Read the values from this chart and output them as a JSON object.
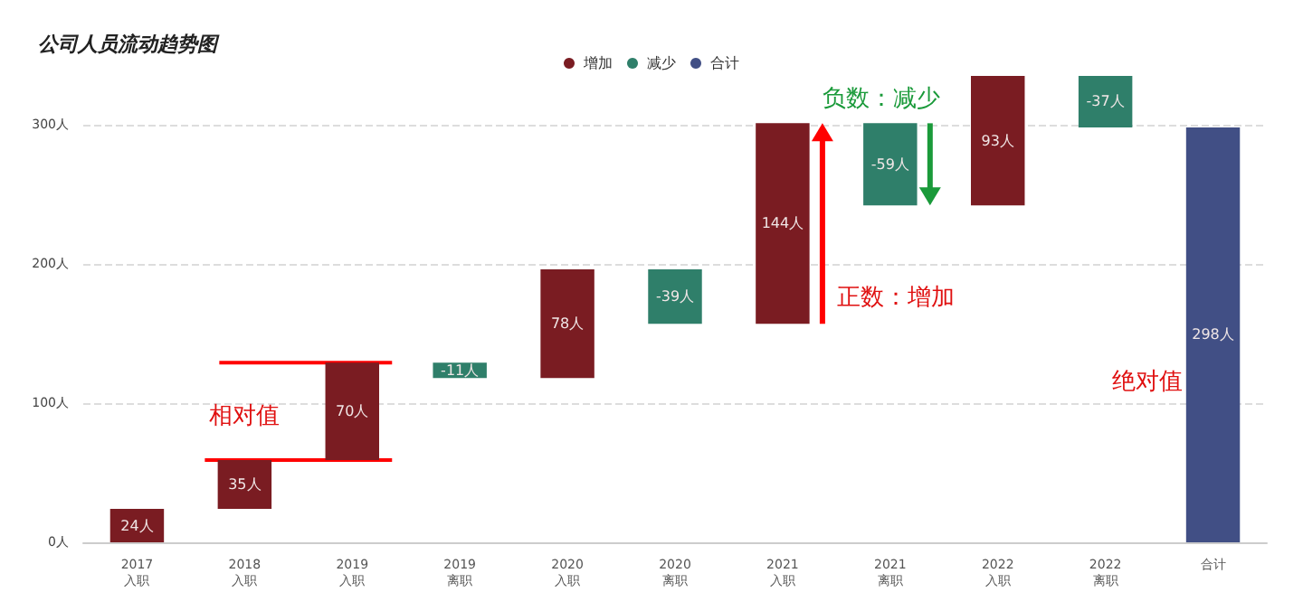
{
  "chart_data": {
    "type": "bar",
    "title": "公司人员流动趋势图",
    "categories": [
      "2017\n入职",
      "2018\n入职",
      "2019\n入职",
      "2019\n离职",
      "2020\n入职",
      "2020\n离职",
      "2021\n入职",
      "2021\n离职",
      "2022\n入职",
      "2022\n离职",
      "合计"
    ],
    "series": [
      {
        "name": "增加",
        "color": "#7a1c22",
        "values": [
          24,
          35,
          70,
          null,
          78,
          null,
          144,
          null,
          93,
          null,
          null
        ],
        "base": [
          0,
          24,
          59,
          null,
          118,
          null,
          157,
          null,
          242,
          null,
          null
        ],
        "value_labels": [
          "24人",
          "35人",
          "70人",
          null,
          "78人",
          null,
          "144人",
          null,
          "93人",
          null,
          null
        ]
      },
      {
        "name": "减少",
        "color": "#2f7f6a",
        "values": [
          null,
          null,
          null,
          -11,
          null,
          -39,
          null,
          -59,
          null,
          -37,
          null
        ],
        "base": [
          null,
          null,
          null,
          129,
          null,
          196,
          null,
          301,
          null,
          335,
          null
        ],
        "value_labels": [
          null,
          null,
          null,
          "-11人",
          null,
          "-39人",
          null,
          "-59人",
          null,
          "-37人",
          null
        ]
      },
      {
        "name": "合计",
        "color": "#414f85",
        "values": [
          null,
          null,
          null,
          null,
          null,
          null,
          null,
          null,
          null,
          null,
          298
        ],
        "base": [
          null,
          null,
          null,
          null,
          null,
          null,
          null,
          null,
          null,
          null,
          0
        ],
        "value_labels": [
          null,
          null,
          null,
          null,
          null,
          null,
          null,
          null,
          null,
          null,
          "298人"
        ]
      }
    ],
    "ylim": [
      0,
      335
    ],
    "yticks": [
      {
        "value": 0,
        "label": "0人"
      },
      {
        "value": 100,
        "label": "100人"
      },
      {
        "value": 200,
        "label": "200人"
      },
      {
        "value": 300,
        "label": "300人"
      }
    ],
    "grid": "y",
    "legend": "top",
    "ref_lines": [
      {
        "axis": "y",
        "value": 59,
        "color": "#ff0000"
      },
      {
        "axis": "y",
        "value": 129,
        "color": "#ff0000"
      }
    ],
    "annotations": [
      "相对值",
      "正数：增加",
      "负数：减少",
      "绝对值"
    ]
  }
}
